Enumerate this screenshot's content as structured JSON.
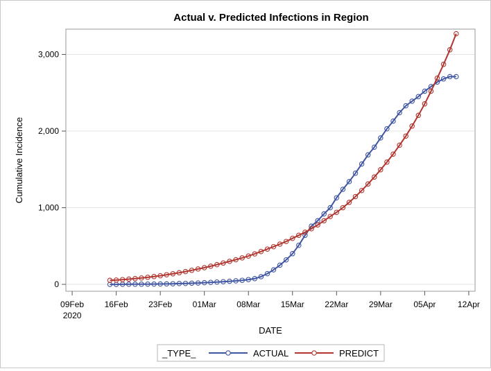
{
  "chart_data": {
    "type": "line",
    "title": "Actual v. Predicted Infections in Region",
    "xlabel": "DATE",
    "ylabel": "Cumulative Incidence",
    "x_ticks": [
      {
        "date": "2020-02-09",
        "label": "09Feb",
        "sublabel": "2020"
      },
      {
        "date": "2020-02-16",
        "label": "16Feb",
        "sublabel": ""
      },
      {
        "date": "2020-02-23",
        "label": "23Feb",
        "sublabel": ""
      },
      {
        "date": "2020-03-01",
        "label": "01Mar",
        "sublabel": ""
      },
      {
        "date": "2020-03-08",
        "label": "08Mar",
        "sublabel": ""
      },
      {
        "date": "2020-03-15",
        "label": "15Mar",
        "sublabel": ""
      },
      {
        "date": "2020-03-22",
        "label": "22Mar",
        "sublabel": ""
      },
      {
        "date": "2020-03-29",
        "label": "29Mar",
        "sublabel": ""
      },
      {
        "date": "2020-04-05",
        "label": "05Apr",
        "sublabel": ""
      },
      {
        "date": "2020-04-12",
        "label": "12Apr",
        "sublabel": ""
      }
    ],
    "y_ticks": [
      {
        "value": 0,
        "label": "0"
      },
      {
        "value": 1000,
        "label": "1,000"
      },
      {
        "value": 2000,
        "label": "2,000"
      },
      {
        "value": 3000,
        "label": "3,000"
      }
    ],
    "xlim": [
      "2020-02-08",
      "2020-04-13"
    ],
    "ylim": [
      -90,
      3330
    ],
    "grid": "horizontal",
    "legend": {
      "title": "_TYPE_",
      "position": "bottom-center"
    },
    "x": [
      "2020-02-15",
      "2020-02-16",
      "2020-02-17",
      "2020-02-18",
      "2020-02-19",
      "2020-02-20",
      "2020-02-21",
      "2020-02-22",
      "2020-02-23",
      "2020-02-24",
      "2020-02-25",
      "2020-02-26",
      "2020-02-27",
      "2020-02-28",
      "2020-02-29",
      "2020-03-01",
      "2020-03-02",
      "2020-03-03",
      "2020-03-04",
      "2020-03-05",
      "2020-03-06",
      "2020-03-07",
      "2020-03-08",
      "2020-03-09",
      "2020-03-10",
      "2020-03-11",
      "2020-03-12",
      "2020-03-13",
      "2020-03-14",
      "2020-03-15",
      "2020-03-16",
      "2020-03-17",
      "2020-03-18",
      "2020-03-19",
      "2020-03-20",
      "2020-03-21",
      "2020-03-22",
      "2020-03-23",
      "2020-03-24",
      "2020-03-25",
      "2020-03-26",
      "2020-03-27",
      "2020-03-28",
      "2020-03-29",
      "2020-03-30",
      "2020-03-31",
      "2020-04-01",
      "2020-04-02",
      "2020-04-03",
      "2020-04-04",
      "2020-04-05",
      "2020-04-06",
      "2020-04-07",
      "2020-04-08",
      "2020-04-09",
      "2020-04-10"
    ],
    "series": [
      {
        "name": "ACTUAL",
        "color": "#3f55a1",
        "values": [
          0,
          0,
          1,
          1,
          2,
          2,
          3,
          4,
          5,
          6,
          8,
          10,
          12,
          15,
          18,
          22,
          26,
          30,
          35,
          40,
          46,
          53,
          62,
          75,
          100,
          140,
          190,
          250,
          320,
          400,
          510,
          640,
          760,
          830,
          920,
          1000,
          1130,
          1240,
          1340,
          1450,
          1570,
          1690,
          1790,
          1910,
          2030,
          2130,
          2240,
          2330,
          2390,
          2450,
          2520,
          2580,
          2640,
          2680,
          2710,
          2710
        ]
      },
      {
        "name": "PREDICT",
        "color": "#b0352f",
        "values": [
          52,
          56,
          62,
          68,
          75,
          83,
          92,
          102,
          113,
          125,
          138,
          152,
          167,
          183,
          200,
          218,
          237,
          257,
          278,
          300,
          322,
          345,
          370,
          398,
          428,
          460,
          492,
          525,
          560,
          600,
          640,
          680,
          725,
          775,
          830,
          885,
          940,
          1000,
          1070,
          1145,
          1225,
          1310,
          1400,
          1495,
          1595,
          1700,
          1815,
          1935,
          2065,
          2205,
          2355,
          2520,
          2690,
          2870,
          3060,
          3270
        ]
      }
    ]
  }
}
